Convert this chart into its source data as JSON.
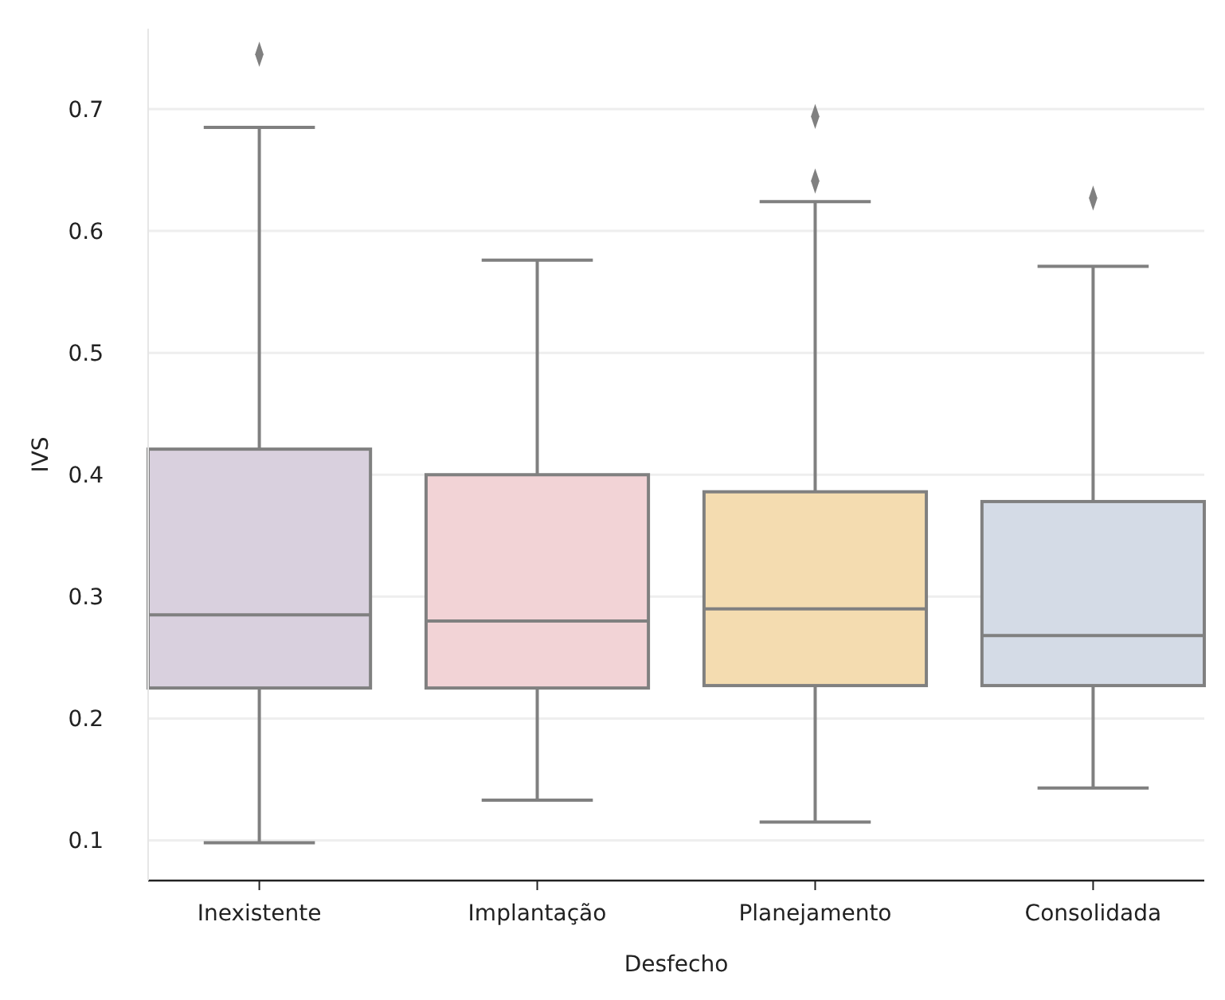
{
  "chart_data": {
    "type": "box",
    "xlabel": "Desfecho",
    "ylabel": "IVS",
    "categories": [
      "Inexistente",
      "Implantação",
      "Planejamento",
      "Consolidada"
    ],
    "colors": [
      "#d9d0de",
      "#f2d3d6",
      "#f4dcb0",
      "#d4dbe6"
    ],
    "boxes": [
      {
        "low": 0.098,
        "q1": 0.225,
        "median": 0.285,
        "q3": 0.421,
        "high": 0.685,
        "outliers": [
          0.745
        ]
      },
      {
        "low": 0.133,
        "q1": 0.225,
        "median": 0.28,
        "q3": 0.4,
        "high": 0.576
      },
      {
        "low": 0.115,
        "q1": 0.227,
        "median": 0.29,
        "q3": 0.386,
        "high": 0.624,
        "outliers": [
          0.641,
          0.694
        ]
      },
      {
        "low": 0.143,
        "q1": 0.227,
        "median": 0.268,
        "q3": 0.378,
        "high": 0.571,
        "outliers": [
          0.627
        ]
      }
    ],
    "ylim": [
      0.067,
      0.766
    ],
    "yticks": [
      0.1,
      0.2,
      0.3,
      0.4,
      0.5,
      0.6,
      0.7
    ],
    "grid": "y",
    "marker": "diamond"
  }
}
